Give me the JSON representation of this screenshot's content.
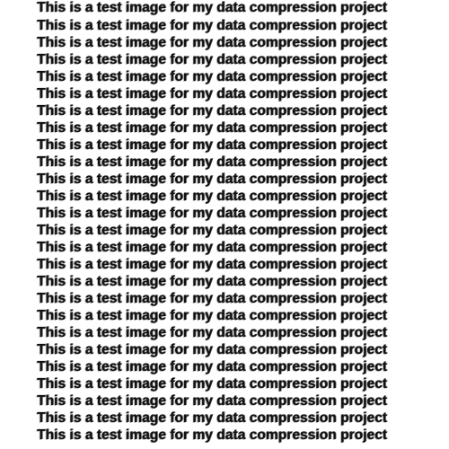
{
  "lines": [
    "This is a test image for my data compression project",
    "This is a test image for my data compression project",
    "This is a test image for my data compression project",
    "This is a test image for my data compression project",
    "This is a test image for my data compression project",
    "This is a test image for my data compression project",
    "This is a test image for my data compression project",
    "This is a test image for my data compression project",
    "This is a test image for my data compression project",
    "This is a test image for my data compression project",
    "This is a test image for my data compression project",
    "This is a test image for my data compression project",
    "This is a test image for my data compression project",
    "This is a test image for my data compression project",
    "This is a test image for my data compression project",
    "This is a test image for my data compression project",
    "This is a test image for my data compression project",
    "This is a test image for my data compression project",
    "This is a test image for my data compression project",
    "This is a test image for my data compression project",
    "This is a test image for my data compression project",
    "This is a test image for my data compression project",
    "This is a test image for my data compression project",
    "This is a test image for my data compression project",
    "This is a test image for my data compression project",
    "This is a test image for my data compression project"
  ]
}
